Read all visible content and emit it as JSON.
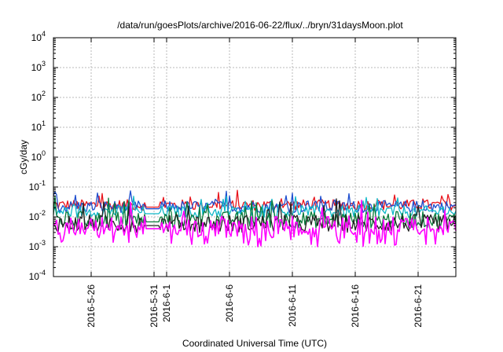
{
  "chart_data": {
    "type": "line",
    "title": "/data/run/goesPlots/archive/2016-06-22/flux/../bryn/31daysMoon.plot",
    "xlabel": "Coordinated Universal Time (UTC)",
    "ylabel": "cGy/day",
    "yscale": "log",
    "ylim": [
      0.0001,
      10000
    ],
    "xlim": [
      "2016-05-23",
      "2016-06-24"
    ],
    "grid": true,
    "legend": "none",
    "y_ticks": [
      {
        "base": "10",
        "exp": "-4",
        "value": 0.0001
      },
      {
        "base": "10",
        "exp": "-3",
        "value": 0.001
      },
      {
        "base": "10",
        "exp": "-2",
        "value": 0.01
      },
      {
        "base": "10",
        "exp": "-1",
        "value": 0.1
      },
      {
        "base": "10",
        "exp": "0",
        "value": 1
      },
      {
        "base": "10",
        "exp": "1",
        "value": 10
      },
      {
        "base": "10",
        "exp": "2",
        "value": 100
      },
      {
        "base": "10",
        "exp": "3",
        "value": 1000
      },
      {
        "base": "10",
        "exp": "4",
        "value": 10000
      }
    ],
    "x_ticks": [
      {
        "label": "2016-5-26",
        "date": "2016-05-26"
      },
      {
        "label": "2016-5-31",
        "date": "2016-05-31"
      },
      {
        "label": "2016-6-1",
        "date": "2016-06-01"
      },
      {
        "label": "2016-6-6",
        "date": "2016-06-06"
      },
      {
        "label": "2016-6-11",
        "date": "2016-06-11"
      },
      {
        "label": "2016-6-16",
        "date": "2016-06-16"
      },
      {
        "label": "2016-6-21",
        "date": "2016-06-21"
      }
    ],
    "data_gap": [
      "2016-05-30",
      "2016-05-31"
    ],
    "series": [
      {
        "color": "#e8141c",
        "base": 0.025,
        "spread": 0.18
      },
      {
        "color": "#1f4fcf",
        "base": 0.022,
        "spread": 0.2
      },
      {
        "color": "#10b8c8",
        "base": 0.015,
        "spread": 0.2
      },
      {
        "color": "#0a7a3a",
        "base": 0.008,
        "spread": 0.28
      },
      {
        "color": "#222222",
        "base": 0.006,
        "spread": 0.3
      },
      {
        "color": "#ff00ff",
        "base": 0.005,
        "spread": 0.32
      }
    ]
  }
}
